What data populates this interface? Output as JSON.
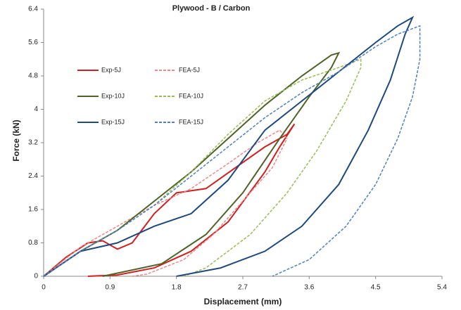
{
  "chart_data": {
    "type": "line",
    "title": "Plywood - B / Carbon",
    "x_label": "Displacement (mm)",
    "y_label": "Force (kN)",
    "xlim": [
      0,
      5.4
    ],
    "xticks": [
      0,
      0.9,
      1.8,
      2.7,
      3.6,
      4.5,
      5.4
    ],
    "ylim": [
      0,
      6.4
    ],
    "yticks": [
      0,
      0.8,
      1.6,
      2.4,
      3.2,
      4,
      4.8,
      5.6,
      6.4
    ],
    "series": [
      {
        "name": "Exp-5J",
        "color": "#d02020",
        "dashed": false,
        "x": [
          0,
          0.3,
          0.6,
          0.8,
          1.0,
          1.2,
          1.5,
          1.8,
          2.2,
          2.6,
          3.0,
          3.3,
          3.4,
          3.2,
          3.0,
          2.5,
          2.0,
          1.5,
          1.0,
          0.6
        ],
        "values": [
          0,
          0.45,
          0.8,
          0.85,
          0.65,
          0.8,
          1.5,
          2.0,
          2.1,
          2.6,
          3.1,
          3.4,
          3.65,
          3.1,
          2.5,
          1.3,
          0.6,
          0.2,
          0.03,
          0
        ]
      },
      {
        "name": "FEA-5J",
        "color": "#e88a8a",
        "dashed": true,
        "x": [
          0,
          0.5,
          1.0,
          1.5,
          2.0,
          2.5,
          2.9,
          3.2,
          3.3,
          3.1,
          2.7,
          2.3,
          1.9,
          1.4,
          1.2
        ],
        "values": [
          0,
          0.7,
          1.2,
          1.7,
          2.1,
          2.7,
          3.2,
          3.5,
          3.3,
          2.6,
          1.8,
          1.0,
          0.4,
          0.05,
          0
        ]
      },
      {
        "name": "Exp-10J",
        "color": "#4f6228",
        "dashed": false,
        "x": [
          0,
          0.5,
          1.0,
          1.5,
          2.0,
          2.5,
          3.0,
          3.5,
          3.9,
          4.0,
          3.9,
          3.6,
          3.2,
          2.7,
          2.2,
          1.6,
          0.8
        ],
        "values": [
          0,
          0.6,
          1.1,
          1.8,
          2.5,
          3.3,
          4.1,
          4.8,
          5.3,
          5.35,
          5.0,
          4.3,
          3.3,
          2.0,
          1.0,
          0.3,
          0
        ]
      },
      {
        "name": "FEA-10J",
        "color": "#9bbb59",
        "dashed": true,
        "x": [
          0,
          0.5,
          1.0,
          1.5,
          2.0,
          2.5,
          3.0,
          3.5,
          4.0,
          4.3,
          4.3,
          4.1,
          3.7,
          3.3,
          2.8,
          2.2,
          1.9
        ],
        "values": [
          0,
          0.6,
          1.1,
          1.7,
          2.5,
          3.4,
          4.2,
          4.7,
          5.0,
          5.2,
          5.0,
          4.2,
          3.0,
          2.0,
          1.0,
          0.2,
          0
        ]
      },
      {
        "name": "Exp-15J",
        "color": "#1f497d",
        "dashed": false,
        "x": [
          0,
          0.5,
          1.0,
          1.5,
          2.0,
          2.5,
          3.0,
          3.5,
          4.0,
          4.5,
          4.8,
          5.0,
          4.9,
          4.7,
          4.4,
          4.0,
          3.5,
          3.0,
          2.4,
          1.8
        ],
        "values": [
          0,
          0.6,
          0.8,
          1.2,
          1.5,
          2.3,
          3.5,
          4.2,
          4.9,
          5.6,
          6.0,
          6.2,
          5.8,
          4.7,
          3.5,
          2.2,
          1.2,
          0.6,
          0.2,
          0
        ]
      },
      {
        "name": "FEA-15J",
        "color": "#4f81bd",
        "dashed": true,
        "x": [
          0,
          0.5,
          1.0,
          1.5,
          2.0,
          2.5,
          3.0,
          3.5,
          4.0,
          4.5,
          4.8,
          5.1,
          5.1,
          5.0,
          4.8,
          4.5,
          4.1,
          3.6,
          3.1
        ],
        "values": [
          0,
          0.6,
          1.1,
          1.7,
          2.4,
          3.1,
          3.8,
          4.4,
          4.9,
          5.5,
          5.8,
          6.0,
          5.2,
          4.3,
          3.3,
          2.2,
          1.2,
          0.4,
          0
        ]
      }
    ]
  }
}
